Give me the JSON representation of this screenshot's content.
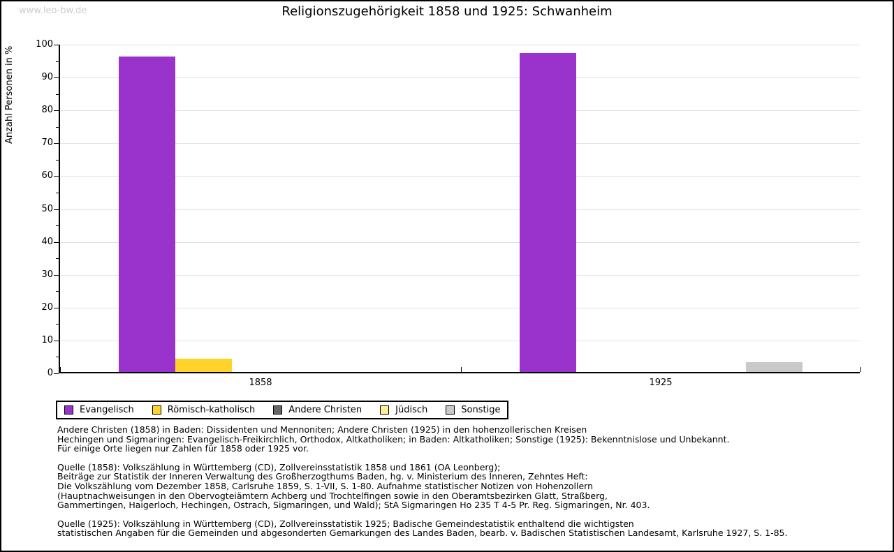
{
  "watermark": "www.leo-bw.de",
  "chart_data": {
    "type": "bar",
    "title": "Religionszugehörigkeit 1858 und 1925: Schwanheim",
    "ylabel": "Anzahl Personen in %",
    "ylim": [
      0,
      100
    ],
    "ytick_major_step": 10,
    "ytick_minor_step": 5,
    "grid": true,
    "legend_position": "bottom",
    "categories": [
      "1858",
      "1925"
    ],
    "series": [
      {
        "name": "Evangelisch",
        "color": "#9933CC",
        "values": [
          96,
          97
        ]
      },
      {
        "name": "Römisch-katholisch",
        "color": "#FFD32A",
        "values": [
          4,
          0
        ]
      },
      {
        "name": "Andere Christen",
        "color": "#666666",
        "values": [
          0,
          0
        ]
      },
      {
        "name": "Jüdisch",
        "color": "#FFEE99",
        "values": [
          0,
          0
        ]
      },
      {
        "name": "Sonstige",
        "color": "#C9C9C9",
        "values": [
          0,
          3
        ]
      }
    ]
  },
  "colors": {
    "grid": "#E2E2E2",
    "axis": "#000000",
    "watermark": "#CCCCCC"
  },
  "footnotes": [
    [
      "Andere Christen (1858) in Baden: Dissidenten und Mennoniten; Andere Christen (1925) in den hohenzollerischen Kreisen",
      "Hechingen und Sigmaringen: Evangelisch-Freikirchlich, Orthodox, Altkatholiken; in Baden: Altkatholiken; Sonstige (1925): Bekenntnislose und Unbekannt.",
      "Für einige Orte liegen nur Zahlen für 1858 oder 1925 vor."
    ],
    [
      "Quelle (1858): Volkszählung in Württemberg (CD), Zollvereinsstatistik 1858 und 1861 (OA Leonberg);",
      "Beiträge zur Statistik der Inneren Verwaltung des Großherzogthums Baden, hg. v. Ministerium des Inneren, Zehntes Heft:",
      "Die Volkszählung vom Dezember 1858, Carlsruhe 1859, S. 1-VII, S. 1-80. Aufnahme statistischer Notizen von Hohenzollern",
      "(Hauptnachweisungen in den Obervogteiämtern Achberg und Trochtelfingen sowie in den Oberamtsbezirken Glatt, Straßberg,",
      "Gammertingen, Haigerloch, Hechingen, Ostrach, Sigmaringen, und Wald); StA Sigmaringen Ho 235 T 4-5 Pr. Reg. Sigmaringen, Nr. 403."
    ],
    [
      "Quelle (1925): Volkszählung in Württemberg (CD), Zollvereinsstatistik 1925; Badische Gemeindestatistik enthaltend die wichtigsten",
      "statistischen Angaben für die Gemeinden und abgesonderten Gemarkungen des Landes Baden, bearb. v. Badischen Statistischen Landesamt, Karlsruhe 1927, S. 1-85."
    ]
  ]
}
